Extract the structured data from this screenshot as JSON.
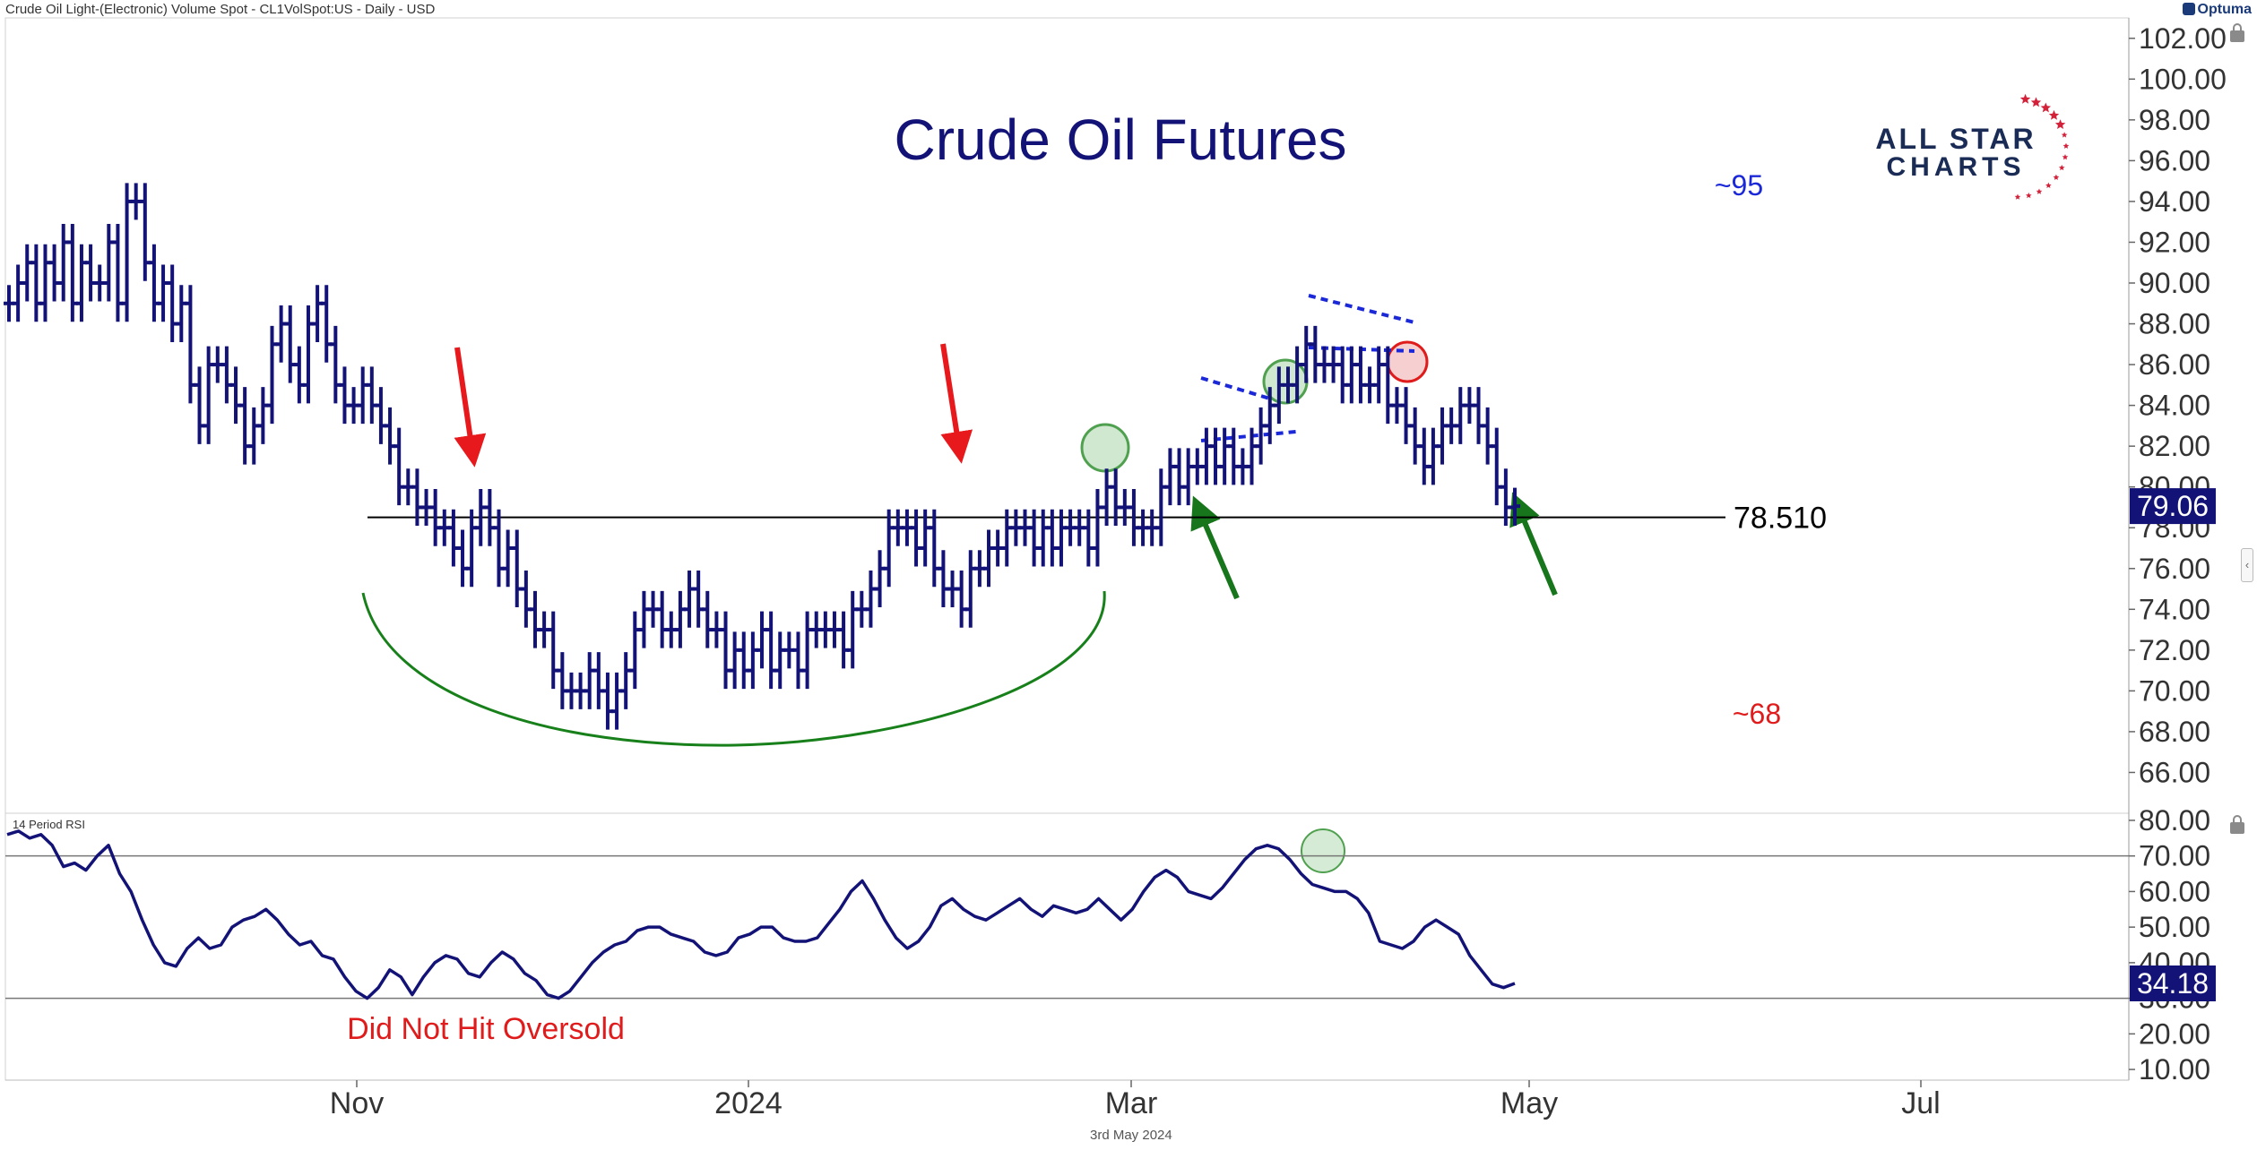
{
  "header": {
    "instrument": "Crude Oil Light-(Electronic) Volume Spot - CL1VolSpot:US - Daily - USD",
    "brand": "Optuma"
  },
  "footer": {
    "date": "3rd May 2024"
  },
  "logo": {
    "line1": "ALL STAR",
    "line2": "CHARTS"
  },
  "colors": {
    "price": "#131377",
    "rsi": "#131377",
    "support": "#000000",
    "arrow_red": "#e8191c",
    "arrow_green": "#17751b",
    "cup": "#18801a",
    "target_up": "#1b28d8",
    "target_down": "#e01b1b"
  },
  "chart_data": [
    {
      "type": "bar",
      "subtype": "ohlc",
      "title": "Crude Oil Futures",
      "ylim": [
        64,
        103
      ],
      "yticks": [
        "102.00",
        "100.00",
        "98.00",
        "96.00",
        "94.00",
        "92.00",
        "90.00",
        "88.00",
        "86.00",
        "84.00",
        "82.00",
        "80.00",
        "78.00",
        "76.00",
        "74.00",
        "72.00",
        "70.00",
        "68.00",
        "66.00"
      ],
      "xticks": [
        "Nov",
        "2024",
        "Mar",
        "May",
        "Jul"
      ],
      "close_path": [
        89,
        90,
        91,
        89,
        91,
        90,
        92,
        89,
        91,
        90,
        90,
        92,
        89,
        94,
        94,
        91,
        89,
        90,
        88,
        89,
        85,
        83,
        86,
        86,
        85,
        84,
        82,
        83,
        84,
        87,
        88,
        86,
        85,
        88,
        89,
        87,
        85,
        84,
        84,
        85,
        84,
        83,
        82,
        80,
        80,
        79,
        79,
        78,
        78,
        77,
        76,
        78,
        79,
        78,
        76,
        77,
        75,
        74,
        73,
        73,
        71,
        70,
        70,
        70,
        71,
        70,
        69,
        70,
        71,
        73,
        74,
        74,
        73,
        73,
        74,
        75,
        74,
        73,
        73,
        71,
        72,
        71,
        72,
        73,
        71,
        72,
        72,
        71,
        73,
        73,
        73,
        73,
        72,
        74,
        74,
        75,
        76,
        78,
        78,
        78,
        77,
        78,
        76,
        75,
        75,
        74,
        76,
        76,
        77,
        77,
        78,
        78,
        78,
        77,
        78,
        77,
        78,
        78,
        78,
        77,
        79,
        80,
        79,
        79,
        78,
        78,
        78,
        80,
        81,
        80,
        81,
        81,
        82,
        81,
        82,
        81,
        81,
        82,
        83,
        84,
        85,
        85,
        86,
        87,
        86,
        86,
        86,
        85,
        86,
        85,
        85,
        86,
        84,
        84,
        83,
        82,
        81,
        82,
        83,
        83,
        84,
        84,
        83,
        82,
        80,
        79,
        79.06
      ],
      "current_price": "79.06",
      "support_level": "78.510",
      "annotations": [
        "~95",
        "~68"
      ]
    },
    {
      "type": "line",
      "title": "14 Period RSI",
      "ylim": [
        7,
        82
      ],
      "yticks": [
        "80.00",
        "70.00",
        "60.00",
        "50.00",
        "40.00",
        "30.00",
        "20.00",
        "10.00"
      ],
      "reference_lines": [
        70,
        30
      ],
      "values": [
        76,
        77,
        75,
        76,
        73,
        67,
        68,
        66,
        70,
        73,
        65,
        60,
        52,
        45,
        40,
        39,
        44,
        47,
        44,
        45,
        50,
        52,
        53,
        55,
        52,
        48,
        45,
        46,
        42,
        41,
        36,
        32,
        30,
        33,
        38,
        36,
        31,
        36,
        40,
        42,
        41,
        37,
        36,
        40,
        43,
        41,
        37,
        35,
        31,
        30,
        32,
        36,
        40,
        43,
        45,
        46,
        49,
        50,
        50,
        48,
        47,
        46,
        43,
        42,
        43,
        47,
        48,
        50,
        50,
        47,
        46,
        46,
        47,
        51,
        55,
        60,
        63,
        58,
        52,
        47,
        44,
        46,
        50,
        56,
        58,
        55,
        53,
        52,
        54,
        56,
        58,
        55,
        53,
        56,
        55,
        54,
        55,
        58,
        55,
        52,
        55,
        60,
        64,
        66,
        64,
        60,
        59,
        58,
        61,
        65,
        69,
        72,
        73,
        72,
        69,
        65,
        62,
        61,
        60,
        60,
        58,
        54,
        46,
        45,
        44,
        46,
        50,
        52,
        50,
        48,
        42,
        38,
        34,
        33,
        34.18
      ],
      "current_value": "34.18",
      "annotation": "Did Not Hit Oversold"
    }
  ]
}
